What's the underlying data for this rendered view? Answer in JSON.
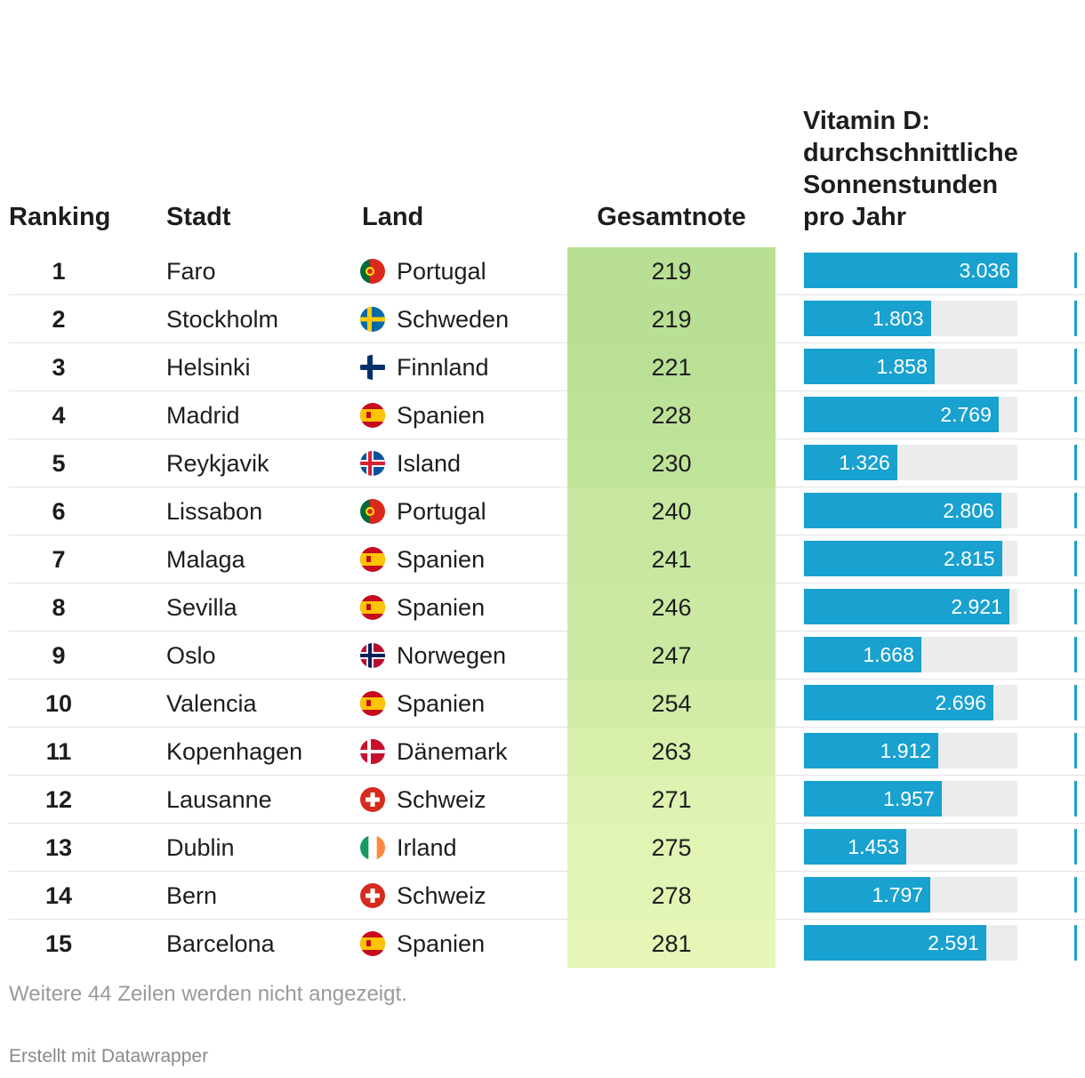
{
  "columns": {
    "ranking": "Ranking",
    "stadt": "Stadt",
    "land": "Land",
    "gesamtnote": "Gesamtnote",
    "vitamin_d": "Vitamin D: durchschnittliche Sonnenstunden pro Jahr"
  },
  "chart_data": {
    "type": "table",
    "columns": [
      "Ranking",
      "Stadt",
      "Land",
      "Gesamtnote",
      "Vitamin D: durchschnittliche Sonnenstunden pro Jahr"
    ],
    "bar_max": 3036,
    "rows": [
      {
        "rank": "1",
        "stadt": "Faro",
        "land": "Portugal",
        "flag": "portugal-flag-icon",
        "gesamtnote": 219,
        "sonnenstunden": 3036,
        "sonnenstunden_label": "3.036"
      },
      {
        "rank": "2",
        "stadt": "Stockholm",
        "land": "Schweden",
        "flag": "sweden-flag-icon",
        "gesamtnote": 219,
        "sonnenstunden": 1803,
        "sonnenstunden_label": "1.803"
      },
      {
        "rank": "3",
        "stadt": "Helsinki",
        "land": "Finnland",
        "flag": "finland-flag-icon",
        "gesamtnote": 221,
        "sonnenstunden": 1858,
        "sonnenstunden_label": "1.858"
      },
      {
        "rank": "4",
        "stadt": "Madrid",
        "land": "Spanien",
        "flag": "spain-flag-icon",
        "gesamtnote": 228,
        "sonnenstunden": 2769,
        "sonnenstunden_label": "2.769"
      },
      {
        "rank": "5",
        "stadt": "Reykjavik",
        "land": "Island",
        "flag": "iceland-flag-icon",
        "gesamtnote": 230,
        "sonnenstunden": 1326,
        "sonnenstunden_label": "1.326"
      },
      {
        "rank": "6",
        "stadt": "Lissabon",
        "land": "Portugal",
        "flag": "portugal-flag-icon",
        "gesamtnote": 240,
        "sonnenstunden": 2806,
        "sonnenstunden_label": "2.806"
      },
      {
        "rank": "7",
        "stadt": "Malaga",
        "land": "Spanien",
        "flag": "spain-flag-icon",
        "gesamtnote": 241,
        "sonnenstunden": 2815,
        "sonnenstunden_label": "2.815"
      },
      {
        "rank": "8",
        "stadt": "Sevilla",
        "land": "Spanien",
        "flag": "spain-flag-icon",
        "gesamtnote": 246,
        "sonnenstunden": 2921,
        "sonnenstunden_label": "2.921"
      },
      {
        "rank": "9",
        "stadt": "Oslo",
        "land": "Norwegen",
        "flag": "norway-flag-icon",
        "gesamtnote": 247,
        "sonnenstunden": 1668,
        "sonnenstunden_label": "1.668"
      },
      {
        "rank": "10",
        "stadt": "Valencia",
        "land": "Spanien",
        "flag": "spain-flag-icon",
        "gesamtnote": 254,
        "sonnenstunden": 2696,
        "sonnenstunden_label": "2.696"
      },
      {
        "rank": "11",
        "stadt": "Kopenhagen",
        "land": "Dänemark",
        "flag": "denmark-flag-icon",
        "gesamtnote": 263,
        "sonnenstunden": 1912,
        "sonnenstunden_label": "1.912"
      },
      {
        "rank": "12",
        "stadt": "Lausanne",
        "land": "Schweiz",
        "flag": "switzerland-flag-icon",
        "gesamtnote": 271,
        "sonnenstunden": 1957,
        "sonnenstunden_label": "1.957"
      },
      {
        "rank": "13",
        "stadt": "Dublin",
        "land": "Irland",
        "flag": "ireland-flag-icon",
        "gesamtnote": 275,
        "sonnenstunden": 1453,
        "sonnenstunden_label": "1.453"
      },
      {
        "rank": "14",
        "stadt": "Bern",
        "land": "Schweiz",
        "flag": "switzerland-flag-icon",
        "gesamtnote": 278,
        "sonnenstunden": 1797,
        "sonnenstunden_label": "1.797"
      },
      {
        "rank": "15",
        "stadt": "Barcelona",
        "land": "Spanien",
        "flag": "spain-flag-icon",
        "gesamtnote": 281,
        "sonnenstunden": 2591,
        "sonnenstunden_label": "2.591"
      }
    ]
  },
  "colors": {
    "bar": "#19a1cf",
    "bar_track": "#ececec",
    "gesamtnote_best": "#b8df94",
    "gesamtnote_worst": "#e5f6b6"
  },
  "footer": {
    "more_rows": "Weitere 44 Zeilen werden nicht angezeigt.",
    "credit": "Erstellt mit Datawrapper"
  }
}
